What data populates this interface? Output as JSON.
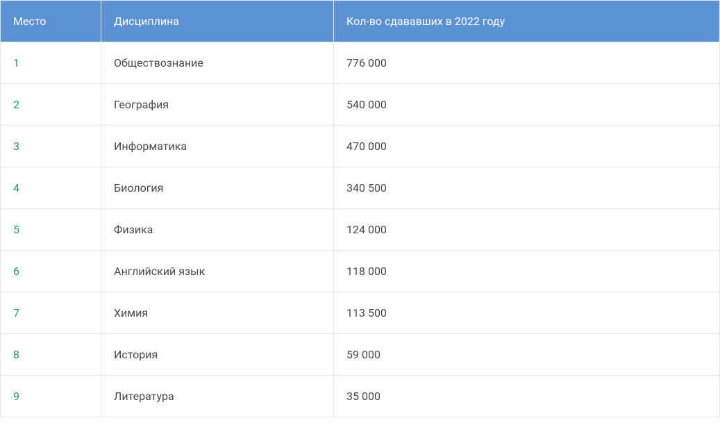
{
  "table": {
    "type": "table",
    "header_bg": "#5b92d4",
    "header_text_color": "#ffffff",
    "border_color": "#e8e8e8",
    "rank_text_color": "#1e9c73",
    "body_text_color": "#4a4a4a",
    "font_size": 16,
    "columns": [
      {
        "key": "rank",
        "label": "Место"
      },
      {
        "key": "name",
        "label": "Дисциплина"
      },
      {
        "key": "count",
        "label": "Кол-во сдававших в 2022 году"
      }
    ],
    "rows": [
      {
        "rank": "1",
        "name": "Обществознание",
        "count": "776 000"
      },
      {
        "rank": "2",
        "name": "География",
        "count": "540 000"
      },
      {
        "rank": "3",
        "name": "Информатика",
        "count": "470 000"
      },
      {
        "rank": "4",
        "name": "Биология",
        "count": "340 500"
      },
      {
        "rank": "5",
        "name": "Физика",
        "count": "124 000"
      },
      {
        "rank": "6",
        "name": "Английский язык",
        "count": "118 000"
      },
      {
        "rank": "7",
        "name": "Химия",
        "count": "113 500"
      },
      {
        "rank": "8",
        "name": "История",
        "count": "59 000"
      },
      {
        "rank": "9",
        "name": "Литература",
        "count": "35 000"
      }
    ]
  }
}
